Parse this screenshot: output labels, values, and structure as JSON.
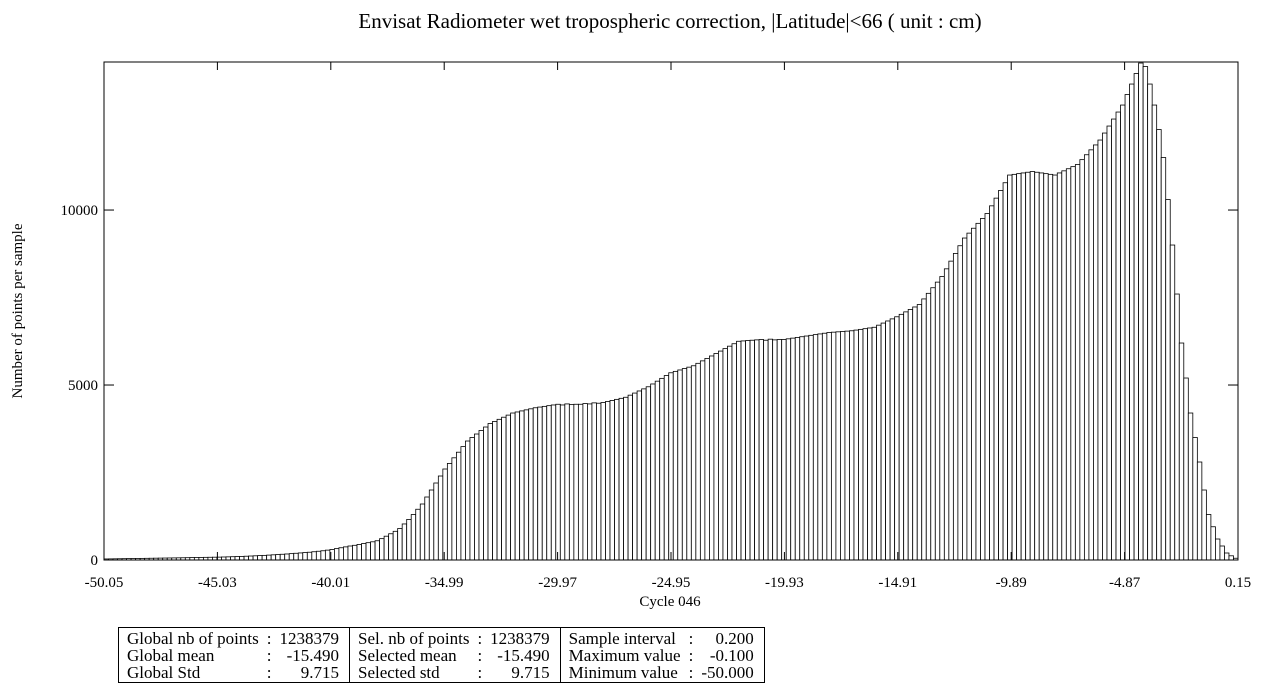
{
  "chart_data": {
    "type": "histogram",
    "title": "Envisat Radiometer wet tropospheric correction, |Latitude|<66  ( unit : cm)",
    "xlabel": "Cycle 046",
    "ylabel": "Number of points per sample",
    "color": "#ffffff",
    "edgecolor": "#000000",
    "xlim": [
      -50.05,
      0.15
    ],
    "ylim": [
      0,
      14230
    ],
    "xticks": [
      -50.05,
      -45.03,
      -40.01,
      -34.99,
      -29.97,
      -24.95,
      -19.93,
      -14.91,
      -9.89,
      -4.87,
      0.15
    ],
    "yticks": [
      0,
      5000,
      10000
    ],
    "bins": [
      -50.05,
      -49.85,
      -49.65,
      -49.45,
      -49.25,
      -49.05,
      -48.85,
      -48.65,
      -48.45,
      -48.25,
      -48.05,
      -47.85,
      -47.65,
      -47.45,
      -47.25,
      -47.05,
      -46.85,
      -46.65,
      -46.45,
      -46.25,
      -46.05,
      -45.85,
      -45.65,
      -45.45,
      -45.25,
      -45.05,
      -44.85,
      -44.65,
      -44.45,
      -44.25,
      -44.05,
      -43.85,
      -43.65,
      -43.45,
      -43.25,
      -43.05,
      -42.85,
      -42.65,
      -42.45,
      -42.25,
      -42.05,
      -41.85,
      -41.65,
      -41.45,
      -41.25,
      -41.05,
      -40.85,
      -40.65,
      -40.45,
      -40.25,
      -40.05,
      -39.85,
      -39.65,
      -39.45,
      -39.25,
      -39.05,
      -38.85,
      -38.65,
      -38.45,
      -38.25,
      -38.05,
      -37.85,
      -37.65,
      -37.45,
      -37.25,
      -37.05,
      -36.85,
      -36.65,
      -36.45,
      -36.25,
      -36.05,
      -35.85,
      -35.65,
      -35.45,
      -35.25,
      -35.05,
      -34.85,
      -34.65,
      -34.45,
      -34.25,
      -34.05,
      -33.85,
      -33.65,
      -33.45,
      -33.25,
      -33.05,
      -32.85,
      -32.65,
      -32.45,
      -32.25,
      -32.05,
      -31.85,
      -31.65,
      -31.45,
      -31.25,
      -31.05,
      -30.85,
      -30.65,
      -30.45,
      -30.25,
      -30.05,
      -29.85,
      -29.65,
      -29.45,
      -29.25,
      -29.05,
      -28.85,
      -28.65,
      -28.45,
      -28.25,
      -28.05,
      -27.85,
      -27.65,
      -27.45,
      -27.25,
      -27.05,
      -26.85,
      -26.65,
      -26.45,
      -26.25,
      -26.05,
      -25.85,
      -25.65,
      -25.45,
      -25.25,
      -25.05,
      -24.85,
      -24.65,
      -24.45,
      -24.25,
      -24.05,
      -23.85,
      -23.65,
      -23.45,
      -23.25,
      -23.05,
      -22.85,
      -22.65,
      -22.45,
      -22.25,
      -22.05,
      -21.85,
      -21.65,
      -21.45,
      -21.25,
      -21.05,
      -20.85,
      -20.65,
      -20.45,
      -20.25,
      -20.05,
      -19.85,
      -19.65,
      -19.45,
      -19.25,
      -19.05,
      -18.85,
      -18.65,
      -18.45,
      -18.25,
      -18.05,
      -17.85,
      -17.65,
      -17.45,
      -17.25,
      -17.05,
      -16.85,
      -16.65,
      -16.45,
      -16.25,
      -16.05,
      -15.85,
      -15.65,
      -15.45,
      -15.25,
      -15.05,
      -14.85,
      -14.65,
      -14.45,
      -14.25,
      -14.05,
      -13.85,
      -13.65,
      -13.45,
      -13.25,
      -13.05,
      -12.85,
      -12.65,
      -12.45,
      -12.25,
      -12.05,
      -11.85,
      -11.65,
      -11.45,
      -11.25,
      -11.05,
      -10.85,
      -10.65,
      -10.45,
      -10.25,
      -10.05,
      -9.85,
      -9.65,
      -9.45,
      -9.25,
      -9.05,
      -8.85,
      -8.65,
      -8.45,
      -8.25,
      -8.05,
      -7.85,
      -7.65,
      -7.45,
      -7.25,
      -7.05,
      -6.85,
      -6.65,
      -6.45,
      -6.25,
      -6.05,
      -5.85,
      -5.65,
      -5.45,
      -5.25,
      -5.05,
      -4.85,
      -4.65,
      -4.45,
      -4.25,
      -4.05,
      -3.85,
      -3.65,
      -3.45,
      -3.25,
      -3.05,
      -2.85,
      -2.65,
      -2.45,
      -2.25,
      -2.05,
      -1.85,
      -1.65,
      -1.45,
      -1.25,
      -1.05,
      -0.85,
      -0.65,
      -0.45,
      -0.25,
      -0.05,
      0.15
    ],
    "values": [
      30,
      32,
      34,
      36,
      38,
      40,
      42,
      44,
      46,
      48,
      50,
      52,
      54,
      56,
      58,
      60,
      62,
      64,
      66,
      70,
      72,
      74,
      76,
      78,
      80,
      82,
      86,
      90,
      94,
      98,
      102,
      108,
      114,
      120,
      126,
      132,
      140,
      148,
      156,
      164,
      172,
      182,
      192,
      202,
      212,
      222,
      236,
      250,
      264,
      282,
      300,
      325,
      350,
      375,
      400,
      420,
      445,
      470,
      495,
      520,
      550,
      610,
      680,
      750,
      820,
      900,
      1030,
      1160,
      1300,
      1450,
      1600,
      1800,
      2000,
      2200,
      2400,
      2600,
      2760,
      2920,
      3080,
      3240,
      3400,
      3500,
      3600,
      3700,
      3800,
      3900,
      3960,
      4020,
      4080,
      4140,
      4200,
      4230,
      4260,
      4290,
      4320,
      4350,
      4370,
      4390,
      4410,
      4430,
      4450,
      4430,
      4460,
      4440,
      4450,
      4450,
      4470,
      4460,
      4490,
      4480,
      4500,
      4530,
      4560,
      4590,
      4620,
      4650,
      4710,
      4770,
      4830,
      4890,
      4950,
      5030,
      5110,
      5190,
      5270,
      5350,
      5390,
      5430,
      5470,
      5510,
      5550,
      5620,
      5690,
      5760,
      5830,
      5900,
      5970,
      6040,
      6110,
      6180,
      6250,
      6260,
      6270,
      6280,
      6290,
      6300,
      6280,
      6310,
      6290,
      6300,
      6300,
      6320,
      6340,
      6360,
      6380,
      6400,
      6420,
      6440,
      6460,
      6480,
      6500,
      6510,
      6520,
      6530,
      6540,
      6550,
      6570,
      6590,
      6610,
      6630,
      6650,
      6710,
      6770,
      6830,
      6890,
      6950,
      7020,
      7090,
      7160,
      7230,
      7300,
      7460,
      7620,
      7780,
      7940,
      8100,
      8320,
      8540,
      8760,
      8980,
      9200,
      9340,
      9480,
      9620,
      9760,
      9900,
      10120,
      10340,
      10560,
      10780,
      11000,
      11020,
      11040,
      11060,
      11080,
      11100,
      11080,
      11060,
      11040,
      11020,
      11000,
      11060,
      11120,
      11180,
      11240,
      11300,
      11440,
      11580,
      11720,
      11860,
      12000,
      12200,
      12400,
      12600,
      12800,
      13000,
      13300,
      13600,
      13900,
      14200,
      14100,
      13600,
      13000,
      12300,
      11500,
      10300,
      9000,
      7600,
      6200,
      5200,
      4200,
      3500,
      2800,
      2000,
      1300,
      950,
      600,
      400,
      200,
      120,
      50
    ]
  },
  "stats": {
    "rows": [
      [
        [
          "Global nb of points",
          ":",
          "1238379"
        ],
        [
          "Sel. nb of points",
          ":",
          "1238379"
        ],
        [
          "Sample interval",
          ":",
          "0.200"
        ]
      ],
      [
        [
          "Global mean",
          ":",
          "-15.490"
        ],
        [
          "Selected mean",
          ":",
          "-15.490"
        ],
        [
          "Maximum value",
          ":",
          "-0.100"
        ]
      ],
      [
        [
          "Global Std",
          ":",
          "9.715"
        ],
        [
          "Selected std",
          ":",
          "9.715"
        ],
        [
          "Minimum value",
          ":",
          "-50.000"
        ]
      ]
    ]
  }
}
